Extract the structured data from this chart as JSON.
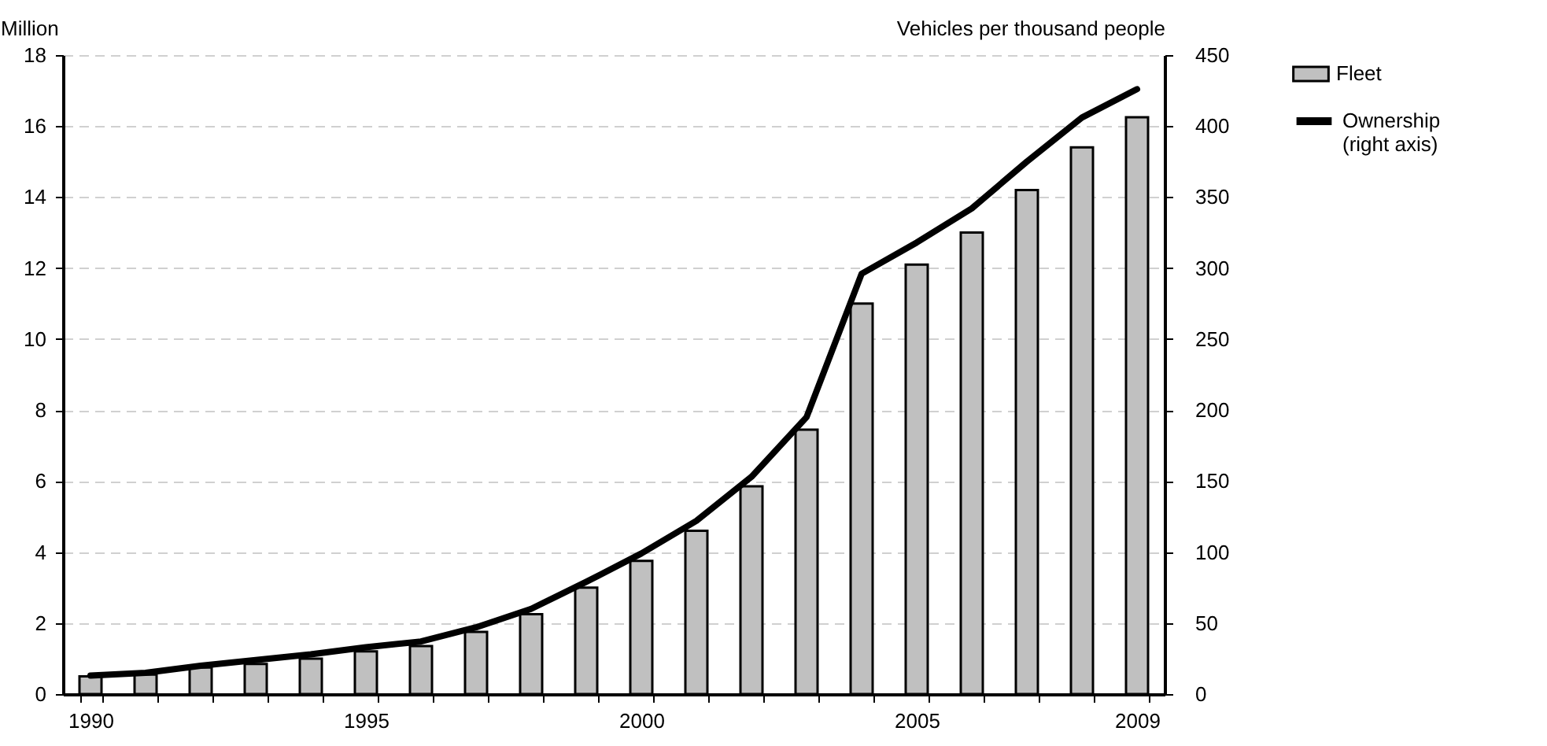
{
  "chart_data": {
    "type": "bar",
    "ylabel": "Million",
    "y2label": "Vehicles per thousand people",
    "categories": [
      "1990",
      null,
      null,
      null,
      null,
      "1995",
      null,
      null,
      null,
      null,
      "2000",
      null,
      null,
      null,
      null,
      "2005",
      null,
      null,
      null,
      "2009"
    ],
    "series": [
      {
        "name": "Fleet",
        "color": "#c0c0c0",
        "values": [
          0.5,
          0.55,
          0.75,
          0.85,
          1.0,
          1.2,
          1.35,
          1.75,
          2.25,
          3.0,
          3.75,
          4.6,
          5.85,
          7.45,
          11.0,
          12.1,
          13.0,
          14.2,
          15.4,
          16.25
        ]
      },
      {
        "name": "Ownership (right axis)",
        "type": "line",
        "axis": "y2",
        "color": "#000000",
        "values": [
          13,
          15,
          20,
          24,
          28,
          33,
          37,
          47,
          60,
          79,
          99,
          122,
          153,
          195,
          296,
          318,
          342,
          375,
          406,
          426
        ]
      }
    ],
    "ylim": [
      0,
      18
    ],
    "yticks": [
      0,
      2,
      4,
      6,
      8,
      10,
      12,
      14,
      16,
      18
    ],
    "y2lim": [
      0,
      450
    ],
    "y2ticks": [
      0,
      50,
      100,
      150,
      200,
      250,
      300,
      350,
      400,
      450
    ],
    "grid": "y",
    "legend": "right"
  }
}
